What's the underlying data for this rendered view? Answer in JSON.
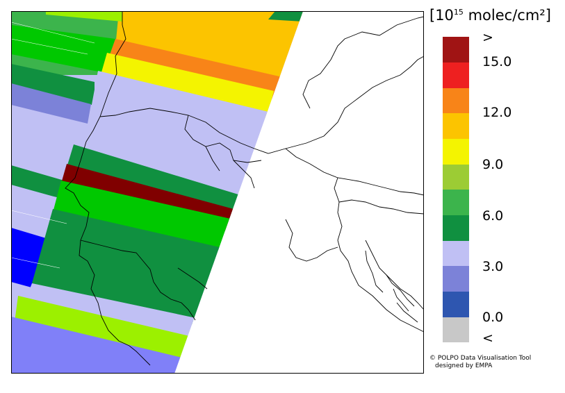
{
  "legend": {
    "unit_base": "[10",
    "unit_exp": "15",
    "unit_rest": " molec/cm²]",
    "colors": [
      "#c8c8c8",
      "#2e56b0",
      "#7c82d8",
      "#c0c0f4",
      "#109040",
      "#3cb44c",
      "#9ccc34",
      "#f4f400",
      "#fcc400",
      "#f88418",
      "#ee2020",
      "#a01414"
    ],
    "ticks": [
      "<",
      "0.0",
      "3.0",
      "6.0",
      "9.0",
      "12.0",
      "15.0",
      ">"
    ]
  },
  "credit": {
    "line1": "© POLPO Data Visualisation Tool",
    "line2": "designed by EMPA"
  }
}
